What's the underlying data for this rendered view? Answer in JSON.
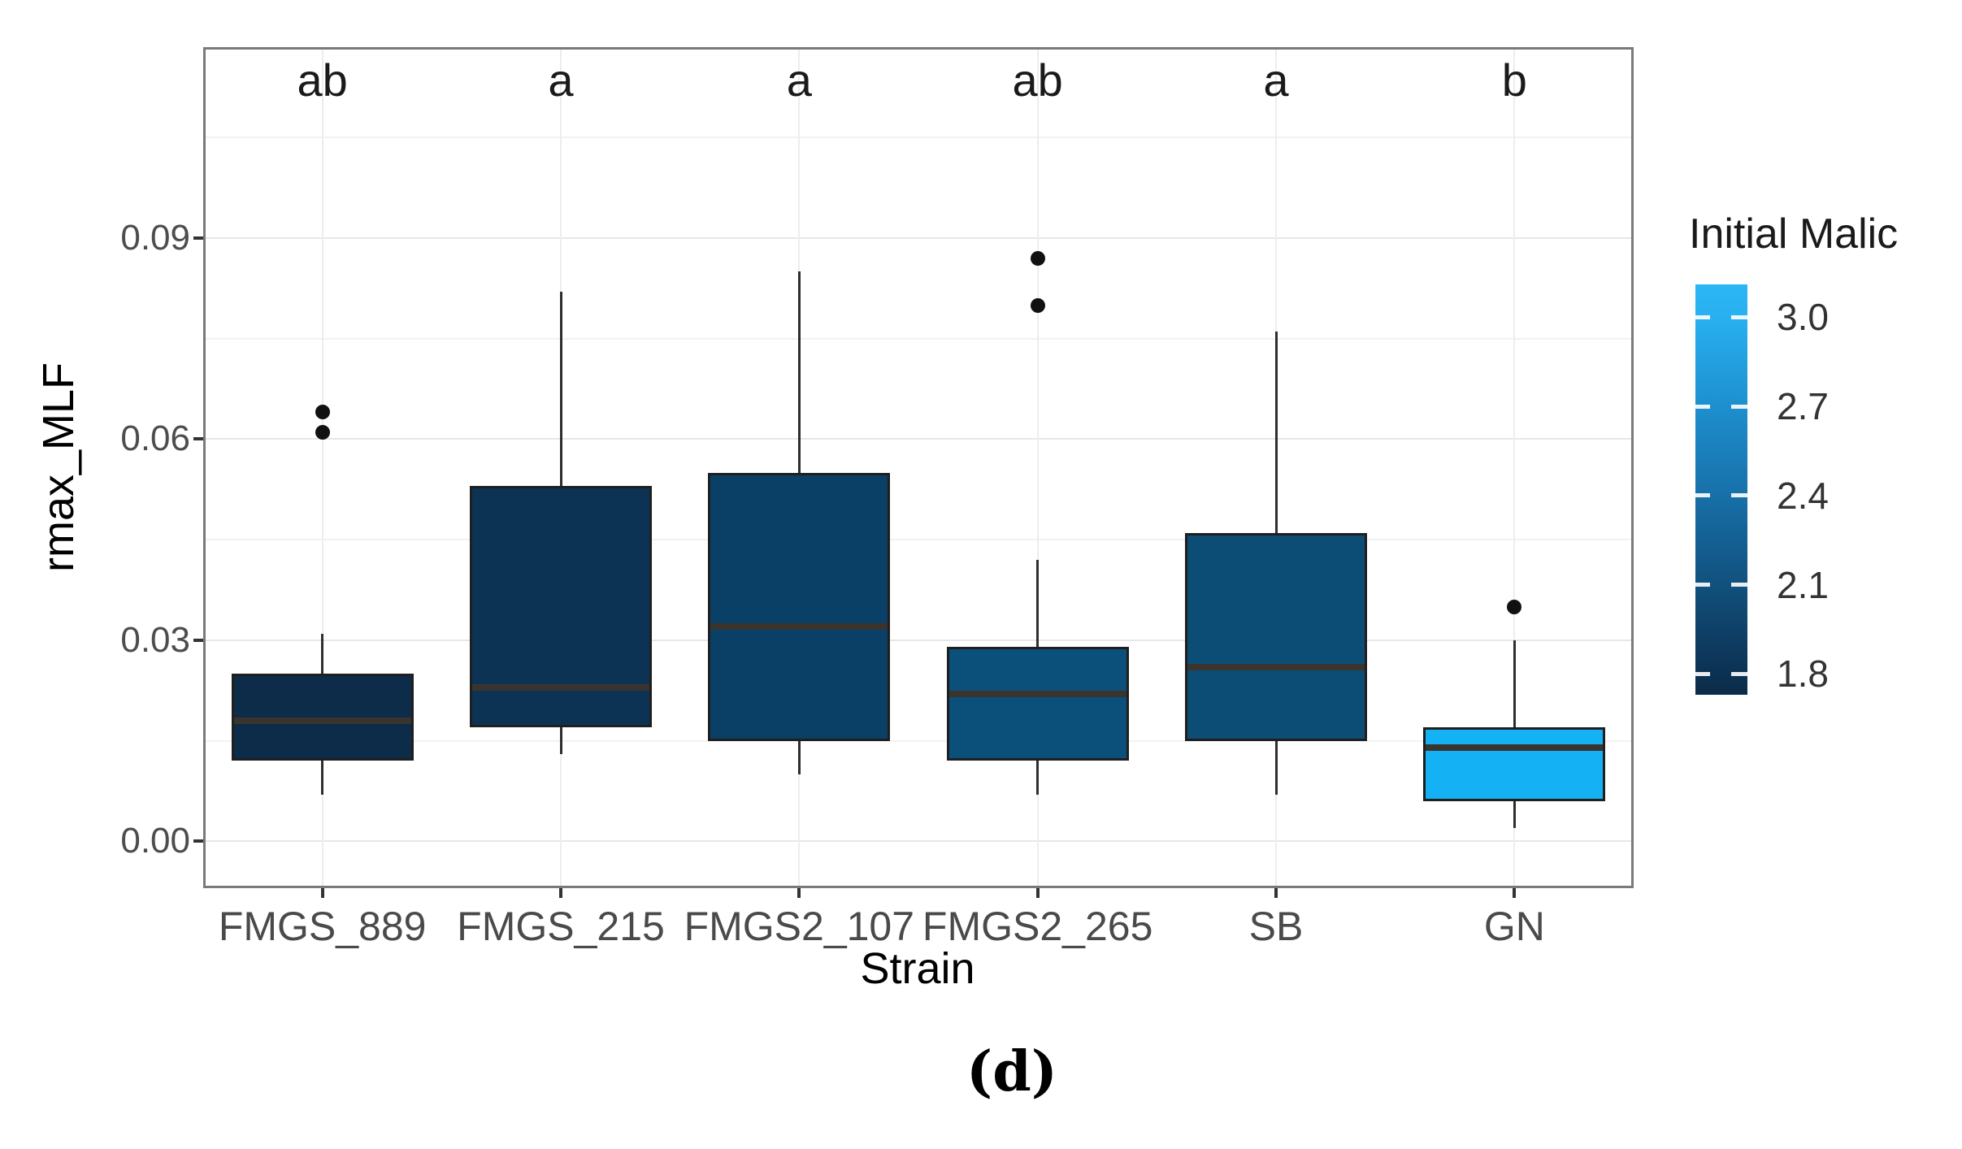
{
  "figure": {
    "caption": "(d)"
  },
  "colors": {
    "panel_border": "#7a7a7a",
    "grid_major": "#e7e7e7",
    "grid_minor": "#f2f2f2",
    "grid_vertical": "#ededed",
    "box_border": "#1f1f1f",
    "median_line": "#3a332e",
    "whisker": "#2e2e2e",
    "outlier": "#111111",
    "tick_mark": "#333333",
    "y_tick_label": "#4d4d4d",
    "x_tick_label": "#4a4a4a"
  },
  "chart_data": {
    "type": "boxplot",
    "title": "",
    "xlabel": "Strain",
    "ylabel": "rmax_MLF",
    "ylim": [
      -0.007,
      0.1185
    ],
    "yticks": [
      0.0,
      0.03,
      0.06,
      0.09
    ],
    "ytick_labels": [
      "0.00",
      "0.03",
      "0.06",
      "0.09"
    ],
    "yticks_minor": [
      0.015,
      0.045,
      0.075,
      0.105
    ],
    "grid": true,
    "categories": [
      "FMGS_889",
      "FMGS_215",
      "FMGS2_107",
      "FMGS2_265",
      "SB",
      "GN"
    ],
    "significance_letters": [
      "ab",
      "a",
      "a",
      "ab",
      "a",
      "b"
    ],
    "letters_y_value": 0.1135,
    "series": [
      {
        "name": "FMGS_889",
        "letter": "ab",
        "fill": "#0c2c49",
        "whisker_low": 0.007,
        "q1": 0.012,
        "median": 0.018,
        "q3": 0.025,
        "whisker_high": 0.031,
        "outliers": [
          0.061,
          0.064
        ]
      },
      {
        "name": "FMGS_215",
        "letter": "a",
        "fill": "#0d3354",
        "whisker_low": 0.013,
        "q1": 0.017,
        "median": 0.023,
        "q3": 0.053,
        "whisker_high": 0.082,
        "outliers": []
      },
      {
        "name": "FMGS2_107",
        "letter": "a",
        "fill": "#0a4066",
        "whisker_low": 0.01,
        "q1": 0.015,
        "median": 0.032,
        "q3": 0.055,
        "whisker_high": 0.085,
        "outliers": []
      },
      {
        "name": "FMGS2_265",
        "letter": "ab",
        "fill": "#0a507b",
        "whisker_low": 0.007,
        "q1": 0.012,
        "median": 0.022,
        "q3": 0.029,
        "whisker_high": 0.042,
        "outliers": [
          0.08,
          0.087
        ]
      },
      {
        "name": "SB",
        "letter": "a",
        "fill": "#0c4d75",
        "whisker_low": 0.007,
        "q1": 0.015,
        "median": 0.026,
        "q3": 0.046,
        "whisker_high": 0.076,
        "outliers": []
      },
      {
        "name": "GN",
        "letter": "b",
        "fill": "#14b1f4",
        "whisker_low": 0.002,
        "q1": 0.006,
        "median": 0.014,
        "q3": 0.017,
        "whisker_high": 0.03,
        "outliers": [
          0.035
        ]
      }
    ],
    "legend": {
      "title": "Initial Malic",
      "position": "right",
      "range": [
        1.73,
        3.11
      ],
      "ticks": [
        {
          "value": 3.0,
          "label": "3.0"
        },
        {
          "value": 2.7,
          "label": "2.7"
        },
        {
          "value": 2.4,
          "label": "2.4"
        },
        {
          "value": 2.1,
          "label": "2.1"
        },
        {
          "value": 1.8,
          "label": "1.8"
        }
      ],
      "gradient_stops": [
        {
          "pct": 0,
          "color": "#2db6f6"
        },
        {
          "pct": 8,
          "color": "#28b0f0"
        },
        {
          "pct": 29,
          "color": "#1e90d0"
        },
        {
          "pct": 52,
          "color": "#176fa7"
        },
        {
          "pct": 73,
          "color": "#11517e"
        },
        {
          "pct": 95,
          "color": "#0c3152"
        },
        {
          "pct": 100,
          "color": "#0b2c48"
        }
      ]
    }
  }
}
